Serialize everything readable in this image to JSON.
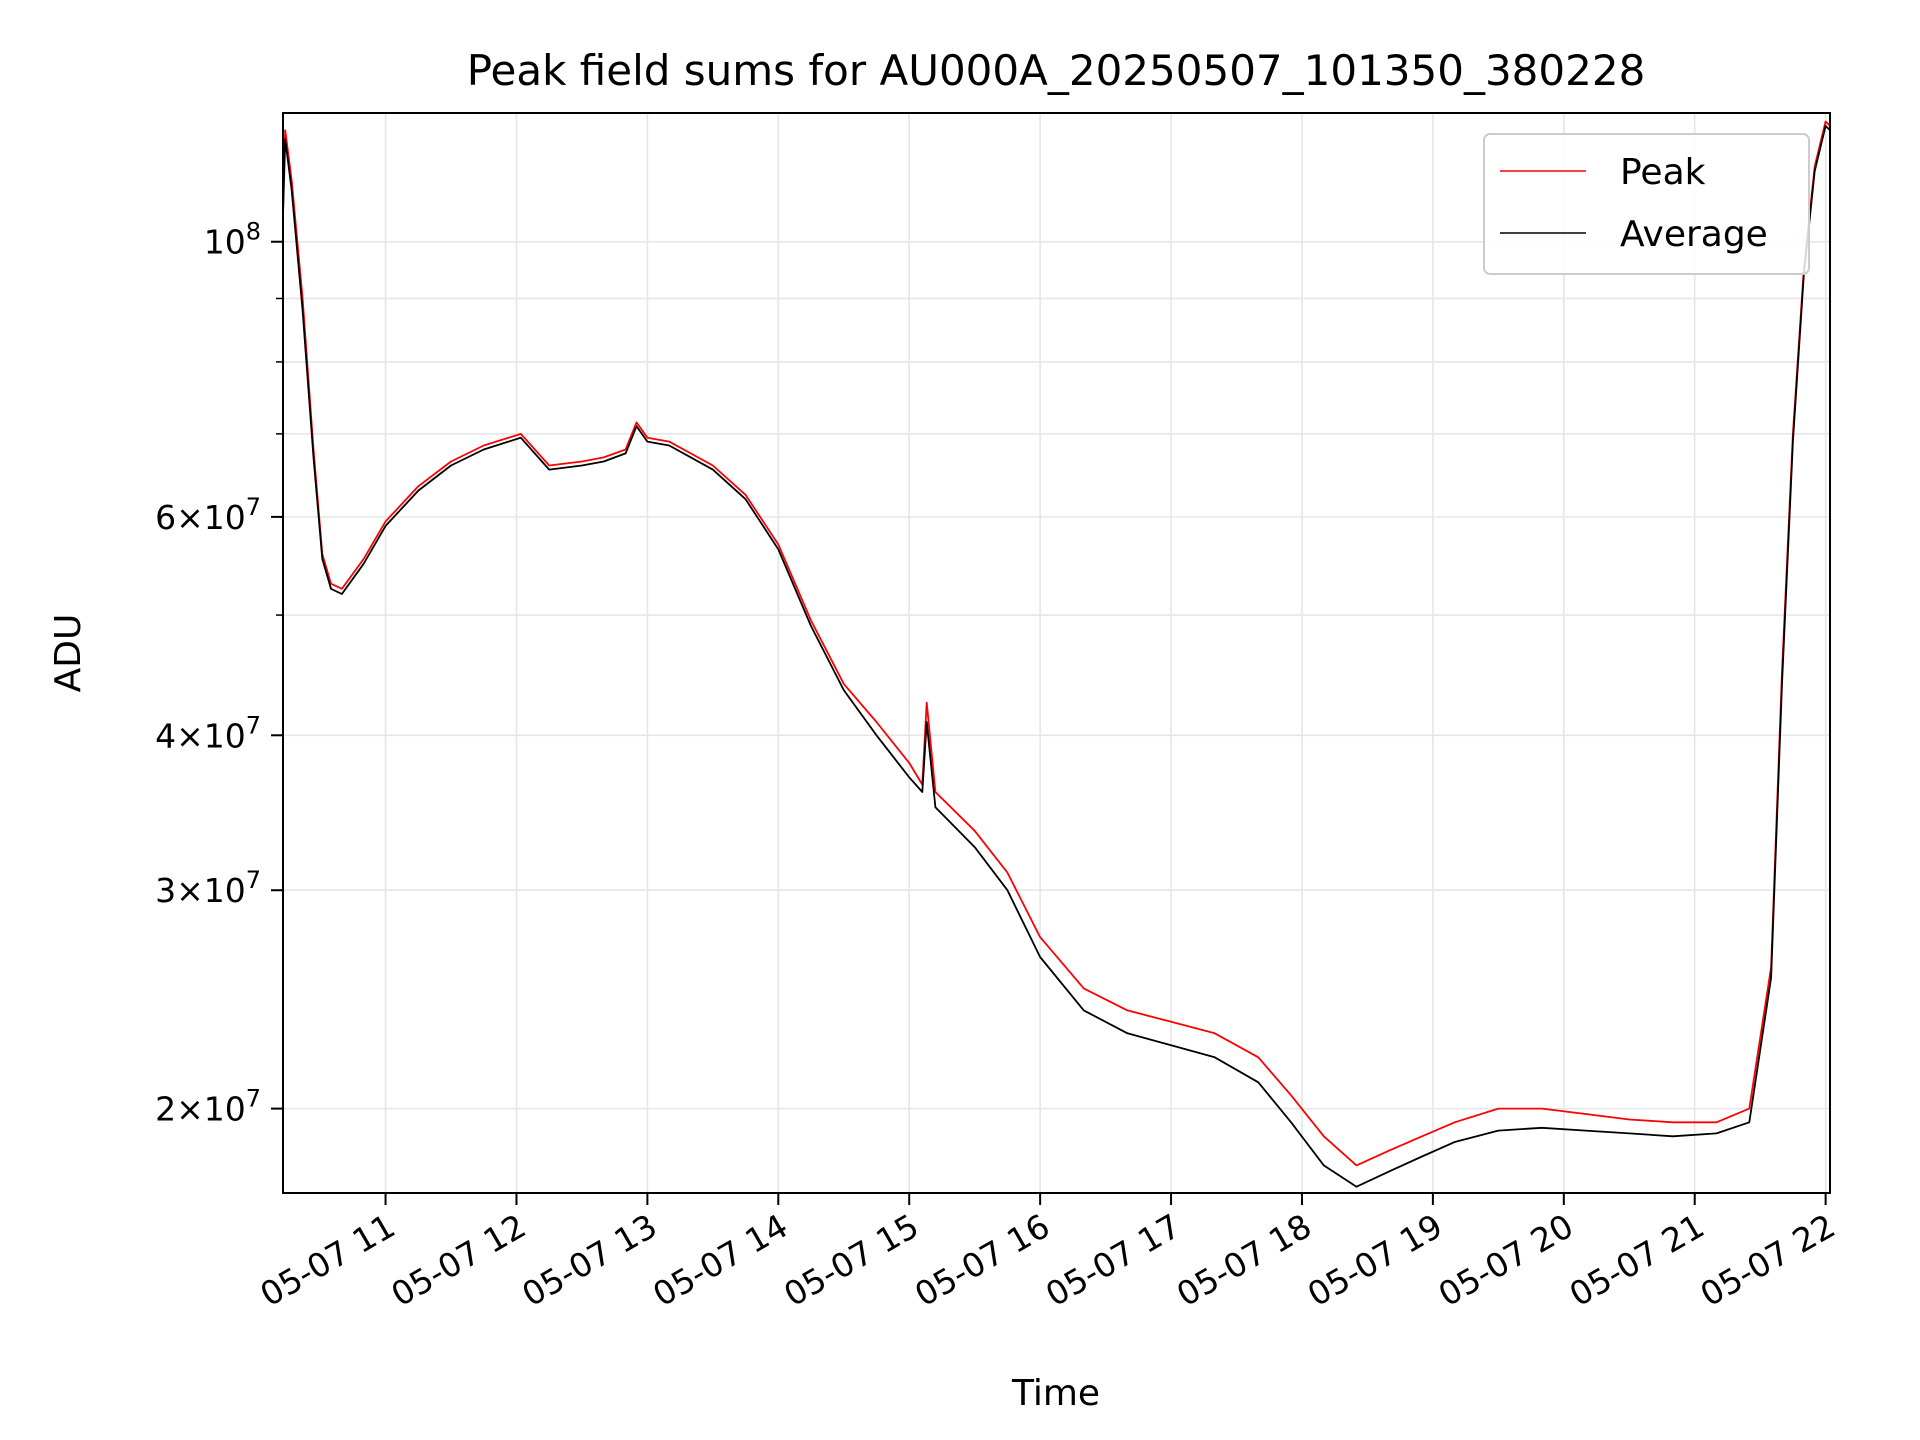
{
  "chart_data": {
    "type": "line",
    "title": "Peak field sums for AU000A_20250507_101350_380228",
    "xlabel": "Time",
    "ylabel": "ADU",
    "x_scale": "time",
    "y_scale": "log",
    "xlim": [
      "05-07 10:13",
      "05-07 22:02"
    ],
    "ylim": [
      17100000,
      127000000
    ],
    "grid": true,
    "legend_position": "top-right",
    "x_ticks": [
      "05-07 11",
      "05-07 12",
      "05-07 13",
      "05-07 14",
      "05-07 15",
      "05-07 16",
      "05-07 17",
      "05-07 18",
      "05-07 19",
      "05-07 20",
      "05-07 21",
      "05-07 22"
    ],
    "y_ticks": [
      {
        "value": 100000000,
        "mantissa": "",
        "exponent": "8"
      },
      {
        "value": 60000000,
        "mantissa": "6",
        "exponent": "7"
      },
      {
        "value": 40000000,
        "mantissa": "4",
        "exponent": "7"
      },
      {
        "value": 30000000,
        "mantissa": "3",
        "exponent": "7"
      },
      {
        "value": 20000000,
        "mantissa": "2",
        "exponent": "7"
      }
    ],
    "series": [
      {
        "name": "Peak",
        "color": "#ff0000",
        "x": [
          "05-07 10:13",
          "05-07 10:14",
          "05-07 10:17",
          "05-07 10:22",
          "05-07 10:27",
          "05-07 10:31",
          "05-07 10:35",
          "05-07 10:40",
          "05-07 10:50",
          "05-07 11:00",
          "05-07 11:15",
          "05-07 11:30",
          "05-07 11:45",
          "05-07 12:02",
          "05-07 12:10",
          "05-07 12:15",
          "05-07 12:30",
          "05-07 12:40",
          "05-07 12:50",
          "05-07 12:55",
          "05-07 13:00",
          "05-07 13:10",
          "05-07 13:30",
          "05-07 13:45",
          "05-07 14:00",
          "05-07 14:15",
          "05-07 14:30",
          "05-07 14:45",
          "05-07 15:00",
          "05-07 15:06",
          "05-07 15:08",
          "05-07 15:12",
          "05-07 15:30",
          "05-07 15:45",
          "05-07 16:00",
          "05-07 16:20",
          "05-07 16:40",
          "05-07 17:00",
          "05-07 17:20",
          "05-07 17:40",
          "05-07 17:55",
          "05-07 18:10",
          "05-07 18:25",
          "05-07 18:40",
          "05-07 18:55",
          "05-07 19:10",
          "05-07 19:30",
          "05-07 19:50",
          "05-07 20:10",
          "05-07 20:30",
          "05-07 20:50",
          "05-07 21:10",
          "05-07 21:25",
          "05-07 21:35",
          "05-07 21:40",
          "05-07 21:45",
          "05-07 21:50",
          "05-07 21:55",
          "05-07 22:00",
          "05-07 22:02"
        ],
        "values": [
          107000000,
          123000000,
          112000000,
          90000000,
          68000000,
          56000000,
          53000000,
          52500000,
          55500000,
          59500000,
          63500000,
          66500000,
          68500000,
          70000000,
          67500000,
          66000000,
          66500000,
          67000000,
          68000000,
          71500000,
          69500000,
          69000000,
          66000000,
          62500000,
          57000000,
          49500000,
          44000000,
          41000000,
          38000000,
          36500000,
          42500000,
          36000000,
          33500000,
          31000000,
          27500000,
          25000000,
          24000000,
          23500000,
          23000000,
          22000000,
          20500000,
          19000000,
          18000000,
          18500000,
          19000000,
          19500000,
          20000000,
          20000000,
          19800000,
          19600000,
          19500000,
          19500000,
          20000000,
          26000000,
          45000000,
          70000000,
          95000000,
          115000000,
          125000000,
          124000000
        ]
      },
      {
        "name": "Average",
        "color": "#000000",
        "x": [
          "05-07 10:13",
          "05-07 10:14",
          "05-07 10:17",
          "05-07 10:22",
          "05-07 10:27",
          "05-07 10:31",
          "05-07 10:35",
          "05-07 10:40",
          "05-07 10:50",
          "05-07 11:00",
          "05-07 11:15",
          "05-07 11:30",
          "05-07 11:45",
          "05-07 12:02",
          "05-07 12:10",
          "05-07 12:15",
          "05-07 12:30",
          "05-07 12:40",
          "05-07 12:50",
          "05-07 12:55",
          "05-07 13:00",
          "05-07 13:10",
          "05-07 13:30",
          "05-07 13:45",
          "05-07 14:00",
          "05-07 14:15",
          "05-07 14:30",
          "05-07 14:45",
          "05-07 15:00",
          "05-07 15:06",
          "05-07 15:08",
          "05-07 15:12",
          "05-07 15:30",
          "05-07 15:45",
          "05-07 16:00",
          "05-07 16:20",
          "05-07 16:40",
          "05-07 17:00",
          "05-07 17:20",
          "05-07 17:40",
          "05-07 17:55",
          "05-07 18:10",
          "05-07 18:25",
          "05-07 18:40",
          "05-07 18:55",
          "05-07 19:10",
          "05-07 19:30",
          "05-07 19:50",
          "05-07 20:10",
          "05-07 20:30",
          "05-07 20:50",
          "05-07 21:10",
          "05-07 21:25",
          "05-07 21:35",
          "05-07 21:40",
          "05-07 21:45",
          "05-07 21:50",
          "05-07 21:55",
          "05-07 22:00",
          "05-07 22:02"
        ],
        "values": [
          105000000,
          121000000,
          110000000,
          88000000,
          67000000,
          55500000,
          52500000,
          52000000,
          55000000,
          59000000,
          63000000,
          66000000,
          68000000,
          69500000,
          67000000,
          65500000,
          66000000,
          66500000,
          67500000,
          71000000,
          69000000,
          68500000,
          65500000,
          62000000,
          56500000,
          49000000,
          43500000,
          40000000,
          37000000,
          36000000,
          41000000,
          35000000,
          32500000,
          30000000,
          26500000,
          24000000,
          23000000,
          22500000,
          22000000,
          21000000,
          19500000,
          18000000,
          17300000,
          17800000,
          18300000,
          18800000,
          19200000,
          19300000,
          19200000,
          19100000,
          19000000,
          19100000,
          19500000,
          25500000,
          44000000,
          69000000,
          94000000,
          114000000,
          124000000,
          123000000
        ]
      }
    ]
  }
}
